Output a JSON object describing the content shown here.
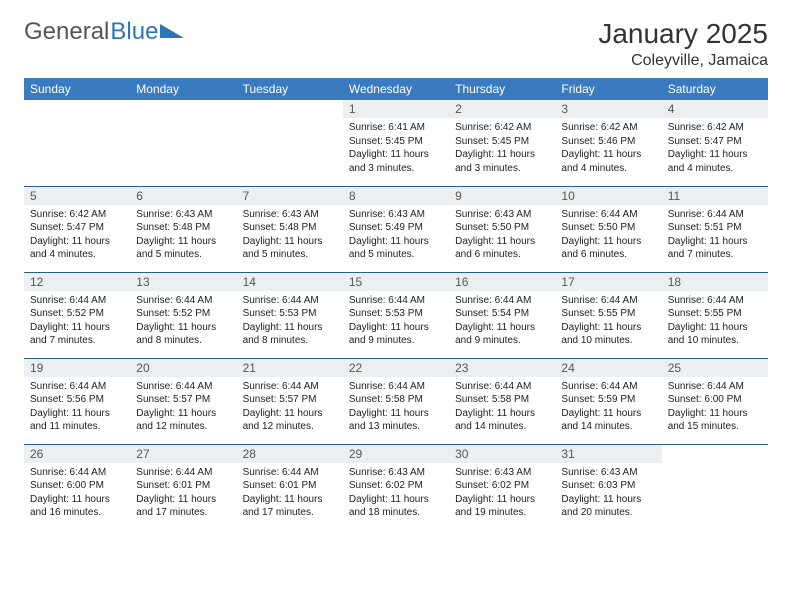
{
  "brand": {
    "part1": "General",
    "part2": "Blue"
  },
  "title": "January 2025",
  "location": "Coleyville, Jamaica",
  "colors": {
    "header_bg": "#3a7bbf",
    "header_text": "#ffffff",
    "daynum_bg": "#eceff1",
    "row_border": "#2e5c8a",
    "brand_blue": "#2e75b6"
  },
  "weekdays": [
    "Sunday",
    "Monday",
    "Tuesday",
    "Wednesday",
    "Thursday",
    "Friday",
    "Saturday"
  ],
  "weeks": [
    [
      {
        "n": "",
        "sr": "",
        "ss": "",
        "dl": ""
      },
      {
        "n": "",
        "sr": "",
        "ss": "",
        "dl": ""
      },
      {
        "n": "",
        "sr": "",
        "ss": "",
        "dl": ""
      },
      {
        "n": "1",
        "sr": "Sunrise: 6:41 AM",
        "ss": "Sunset: 5:45 PM",
        "dl": "Daylight: 11 hours and 3 minutes."
      },
      {
        "n": "2",
        "sr": "Sunrise: 6:42 AM",
        "ss": "Sunset: 5:45 PM",
        "dl": "Daylight: 11 hours and 3 minutes."
      },
      {
        "n": "3",
        "sr": "Sunrise: 6:42 AM",
        "ss": "Sunset: 5:46 PM",
        "dl": "Daylight: 11 hours and 4 minutes."
      },
      {
        "n": "4",
        "sr": "Sunrise: 6:42 AM",
        "ss": "Sunset: 5:47 PM",
        "dl": "Daylight: 11 hours and 4 minutes."
      }
    ],
    [
      {
        "n": "5",
        "sr": "Sunrise: 6:42 AM",
        "ss": "Sunset: 5:47 PM",
        "dl": "Daylight: 11 hours and 4 minutes."
      },
      {
        "n": "6",
        "sr": "Sunrise: 6:43 AM",
        "ss": "Sunset: 5:48 PM",
        "dl": "Daylight: 11 hours and 5 minutes."
      },
      {
        "n": "7",
        "sr": "Sunrise: 6:43 AM",
        "ss": "Sunset: 5:48 PM",
        "dl": "Daylight: 11 hours and 5 minutes."
      },
      {
        "n": "8",
        "sr": "Sunrise: 6:43 AM",
        "ss": "Sunset: 5:49 PM",
        "dl": "Daylight: 11 hours and 5 minutes."
      },
      {
        "n": "9",
        "sr": "Sunrise: 6:43 AM",
        "ss": "Sunset: 5:50 PM",
        "dl": "Daylight: 11 hours and 6 minutes."
      },
      {
        "n": "10",
        "sr": "Sunrise: 6:44 AM",
        "ss": "Sunset: 5:50 PM",
        "dl": "Daylight: 11 hours and 6 minutes."
      },
      {
        "n": "11",
        "sr": "Sunrise: 6:44 AM",
        "ss": "Sunset: 5:51 PM",
        "dl": "Daylight: 11 hours and 7 minutes."
      }
    ],
    [
      {
        "n": "12",
        "sr": "Sunrise: 6:44 AM",
        "ss": "Sunset: 5:52 PM",
        "dl": "Daylight: 11 hours and 7 minutes."
      },
      {
        "n": "13",
        "sr": "Sunrise: 6:44 AM",
        "ss": "Sunset: 5:52 PM",
        "dl": "Daylight: 11 hours and 8 minutes."
      },
      {
        "n": "14",
        "sr": "Sunrise: 6:44 AM",
        "ss": "Sunset: 5:53 PM",
        "dl": "Daylight: 11 hours and 8 minutes."
      },
      {
        "n": "15",
        "sr": "Sunrise: 6:44 AM",
        "ss": "Sunset: 5:53 PM",
        "dl": "Daylight: 11 hours and 9 minutes."
      },
      {
        "n": "16",
        "sr": "Sunrise: 6:44 AM",
        "ss": "Sunset: 5:54 PM",
        "dl": "Daylight: 11 hours and 9 minutes."
      },
      {
        "n": "17",
        "sr": "Sunrise: 6:44 AM",
        "ss": "Sunset: 5:55 PM",
        "dl": "Daylight: 11 hours and 10 minutes."
      },
      {
        "n": "18",
        "sr": "Sunrise: 6:44 AM",
        "ss": "Sunset: 5:55 PM",
        "dl": "Daylight: 11 hours and 10 minutes."
      }
    ],
    [
      {
        "n": "19",
        "sr": "Sunrise: 6:44 AM",
        "ss": "Sunset: 5:56 PM",
        "dl": "Daylight: 11 hours and 11 minutes."
      },
      {
        "n": "20",
        "sr": "Sunrise: 6:44 AM",
        "ss": "Sunset: 5:57 PM",
        "dl": "Daylight: 11 hours and 12 minutes."
      },
      {
        "n": "21",
        "sr": "Sunrise: 6:44 AM",
        "ss": "Sunset: 5:57 PM",
        "dl": "Daylight: 11 hours and 12 minutes."
      },
      {
        "n": "22",
        "sr": "Sunrise: 6:44 AM",
        "ss": "Sunset: 5:58 PM",
        "dl": "Daylight: 11 hours and 13 minutes."
      },
      {
        "n": "23",
        "sr": "Sunrise: 6:44 AM",
        "ss": "Sunset: 5:58 PM",
        "dl": "Daylight: 11 hours and 14 minutes."
      },
      {
        "n": "24",
        "sr": "Sunrise: 6:44 AM",
        "ss": "Sunset: 5:59 PM",
        "dl": "Daylight: 11 hours and 14 minutes."
      },
      {
        "n": "25",
        "sr": "Sunrise: 6:44 AM",
        "ss": "Sunset: 6:00 PM",
        "dl": "Daylight: 11 hours and 15 minutes."
      }
    ],
    [
      {
        "n": "26",
        "sr": "Sunrise: 6:44 AM",
        "ss": "Sunset: 6:00 PM",
        "dl": "Daylight: 11 hours and 16 minutes."
      },
      {
        "n": "27",
        "sr": "Sunrise: 6:44 AM",
        "ss": "Sunset: 6:01 PM",
        "dl": "Daylight: 11 hours and 17 minutes."
      },
      {
        "n": "28",
        "sr": "Sunrise: 6:44 AM",
        "ss": "Sunset: 6:01 PM",
        "dl": "Daylight: 11 hours and 17 minutes."
      },
      {
        "n": "29",
        "sr": "Sunrise: 6:43 AM",
        "ss": "Sunset: 6:02 PM",
        "dl": "Daylight: 11 hours and 18 minutes."
      },
      {
        "n": "30",
        "sr": "Sunrise: 6:43 AM",
        "ss": "Sunset: 6:02 PM",
        "dl": "Daylight: 11 hours and 19 minutes."
      },
      {
        "n": "31",
        "sr": "Sunrise: 6:43 AM",
        "ss": "Sunset: 6:03 PM",
        "dl": "Daylight: 11 hours and 20 minutes."
      },
      {
        "n": "",
        "sr": "",
        "ss": "",
        "dl": ""
      }
    ]
  ]
}
